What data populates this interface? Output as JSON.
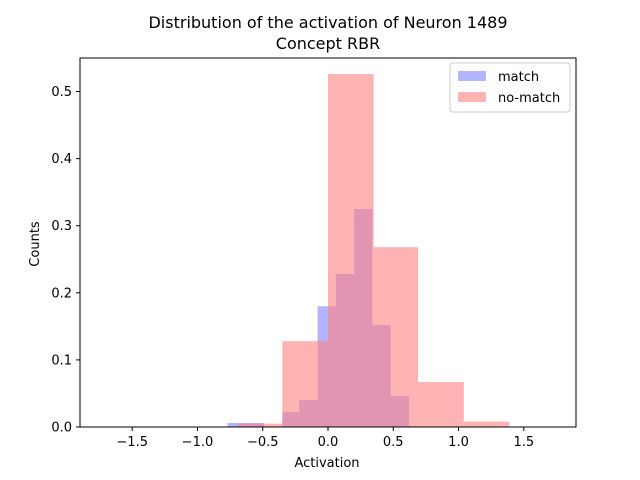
{
  "chart_data": {
    "type": "bar",
    "title": "Distribution of the activation of Neuron 1489",
    "subtitle": "Concept RBR",
    "xlabel": "Activation",
    "ylabel": "Counts",
    "xlim": [
      -1.9,
      1.9
    ],
    "ylim": [
      0,
      0.55
    ],
    "xticks": [
      -1.5,
      -1.0,
      -0.5,
      0.0,
      0.5,
      1.0,
      1.5
    ],
    "xtick_labels": [
      "−1.5",
      "−1.0",
      "−0.5",
      "0.0",
      "0.5",
      "1.0",
      "1.5"
    ],
    "yticks": [
      0.0,
      0.1,
      0.2,
      0.3,
      0.4,
      0.5
    ],
    "ytick_labels": [
      "0.0",
      "0.1",
      "0.2",
      "0.3",
      "0.4",
      "0.5"
    ],
    "grid": false,
    "legend_position": "top-right",
    "series": [
      {
        "name": "match",
        "color": "#8080ff",
        "opacity": 0.6,
        "bins": [
          {
            "x0": -0.77,
            "x1": -0.63,
            "value": 0.006
          },
          {
            "x0": -0.63,
            "x1": -0.49,
            "value": 0.006
          },
          {
            "x0": -0.35,
            "x1": -0.22,
            "value": 0.022
          },
          {
            "x0": -0.22,
            "x1": -0.08,
            "value": 0.04
          },
          {
            "x0": -0.08,
            "x1": 0.06,
            "value": 0.18
          },
          {
            "x0": 0.06,
            "x1": 0.2,
            "value": 0.228
          },
          {
            "x0": 0.2,
            "x1": 0.34,
            "value": 0.325
          },
          {
            "x0": 0.34,
            "x1": 0.48,
            "value": 0.152
          },
          {
            "x0": 0.48,
            "x1": 0.62,
            "value": 0.046
          }
        ]
      },
      {
        "name": "no-match",
        "color": "#ff8080",
        "opacity": 0.6,
        "bins": [
          {
            "x0": -0.69,
            "x1": -0.35,
            "value": 0.005
          },
          {
            "x0": -0.35,
            "x1": 0.0,
            "value": 0.128
          },
          {
            "x0": 0.0,
            "x1": 0.35,
            "value": 0.526
          },
          {
            "x0": 0.35,
            "x1": 0.69,
            "value": 0.268
          },
          {
            "x0": 0.69,
            "x1": 1.04,
            "value": 0.067
          },
          {
            "x0": 1.04,
            "x1": 1.39,
            "value": 0.008
          }
        ]
      }
    ]
  }
}
